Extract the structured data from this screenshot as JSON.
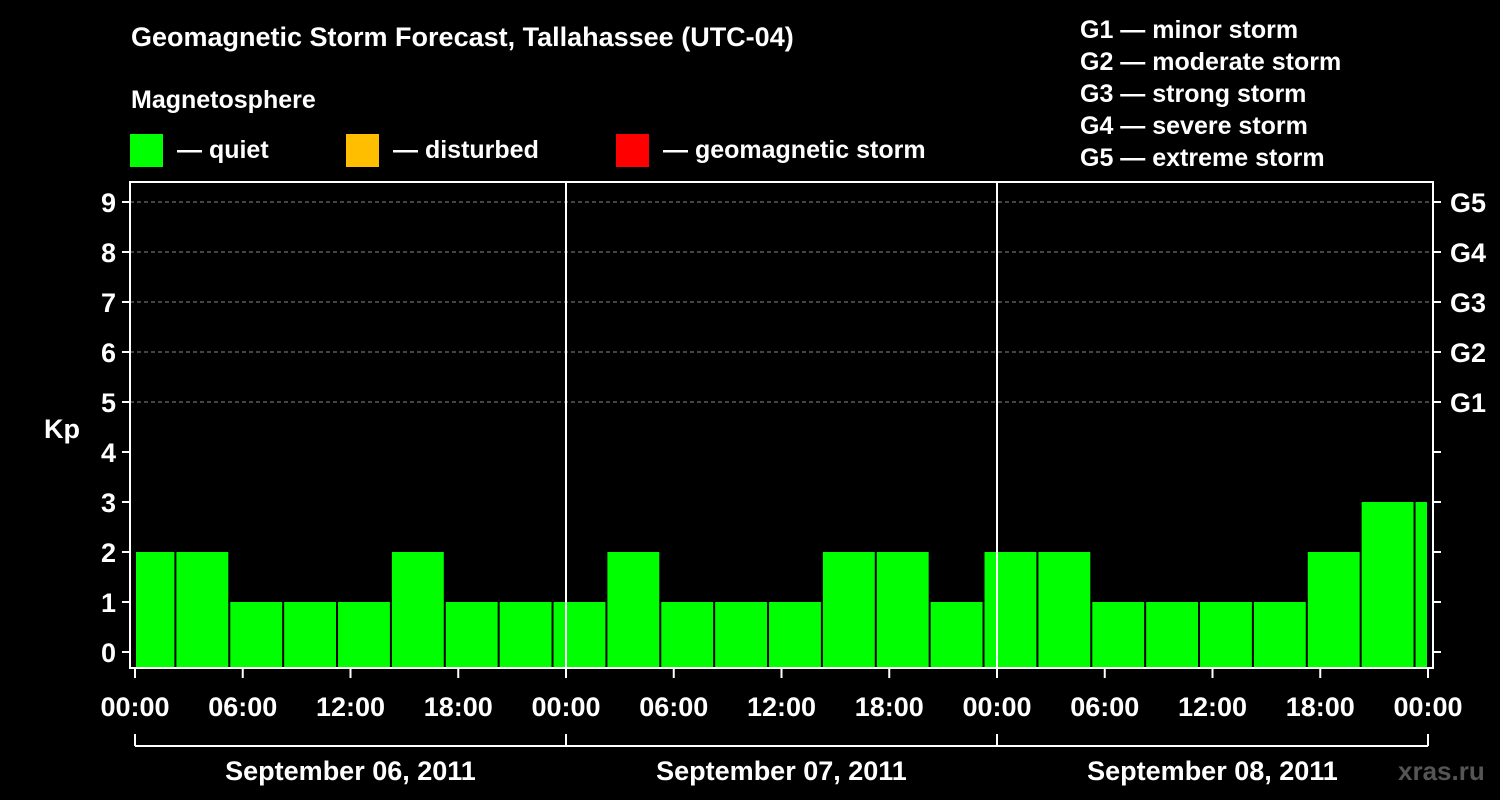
{
  "chart_data": {
    "type": "bar",
    "title": "Geomagnetic Storm Forecast, Tallahassee (UTC-04)",
    "subtitle": "Magnetosphere",
    "ylabel": "Kp",
    "ylim": [
      0,
      9
    ],
    "yticks": [
      "0",
      "1",
      "2",
      "3",
      "4",
      "5",
      "6",
      "7",
      "8",
      "9"
    ],
    "right_ticks": [
      {
        "kp": 5,
        "label": "G1"
      },
      {
        "kp": 6,
        "label": "G2"
      },
      {
        "kp": 7,
        "label": "G3"
      },
      {
        "kp": 8,
        "label": "G4"
      },
      {
        "kp": 9,
        "label": "G5"
      }
    ],
    "xticks": [
      "00:00",
      "06:00",
      "12:00",
      "18:00",
      "00:00",
      "06:00",
      "12:00",
      "18:00",
      "00:00",
      "06:00",
      "12:00",
      "18:00",
      "00:00"
    ],
    "days": [
      "September 06, 2011",
      "September 07, 2011",
      "September 08, 2011"
    ],
    "x_hours": [
      0,
      72
    ],
    "bars": [
      {
        "start": 0,
        "end": 2.25,
        "value": 2
      },
      {
        "start": 2.25,
        "end": 5.25,
        "value": 2
      },
      {
        "start": 5.25,
        "end": 8.25,
        "value": 1
      },
      {
        "start": 8.25,
        "end": 11.25,
        "value": 1
      },
      {
        "start": 11.25,
        "end": 14.25,
        "value": 1
      },
      {
        "start": 14.25,
        "end": 17.25,
        "value": 2
      },
      {
        "start": 17.25,
        "end": 20.25,
        "value": 1
      },
      {
        "start": 20.25,
        "end": 23.25,
        "value": 1
      },
      {
        "start": 23.25,
        "end": 26.25,
        "value": 1
      },
      {
        "start": 26.25,
        "end": 29.25,
        "value": 2
      },
      {
        "start": 29.25,
        "end": 32.25,
        "value": 1
      },
      {
        "start": 32.25,
        "end": 35.25,
        "value": 1
      },
      {
        "start": 35.25,
        "end": 38.25,
        "value": 1
      },
      {
        "start": 38.25,
        "end": 41.25,
        "value": 2
      },
      {
        "start": 41.25,
        "end": 44.25,
        "value": 2
      },
      {
        "start": 44.25,
        "end": 47.25,
        "value": 1
      },
      {
        "start": 47.25,
        "end": 50.25,
        "value": 2
      },
      {
        "start": 50.25,
        "end": 53.25,
        "value": 2
      },
      {
        "start": 53.25,
        "end": 56.25,
        "value": 1
      },
      {
        "start": 56.25,
        "end": 59.25,
        "value": 1
      },
      {
        "start": 59.25,
        "end": 62.25,
        "value": 1
      },
      {
        "start": 62.25,
        "end": 65.25,
        "value": 1
      },
      {
        "start": 65.25,
        "end": 68.25,
        "value": 2
      },
      {
        "start": 68.25,
        "end": 71.25,
        "value": 3
      },
      {
        "start": 71.25,
        "end": 72,
        "value": 3
      }
    ],
    "grid": true,
    "legend_placement": "top"
  },
  "legend": {
    "quiet": {
      "label": "— quiet",
      "color": "#00ff00"
    },
    "disturbed": {
      "label": "— disturbed",
      "color": "#ffbf00"
    },
    "storm": {
      "label": "— geomagnetic storm",
      "color": "#ff0000"
    }
  },
  "storm_scale": [
    "G1 — minor storm",
    "G2 — moderate storm",
    "G3 — strong storm",
    "G4 — severe storm",
    "G5 — extreme storm"
  ],
  "watermark": "xras.ru",
  "colors": {
    "background": "#000000",
    "axis": "#ffffff",
    "grid": "#888888",
    "bar": "#00ff00"
  }
}
